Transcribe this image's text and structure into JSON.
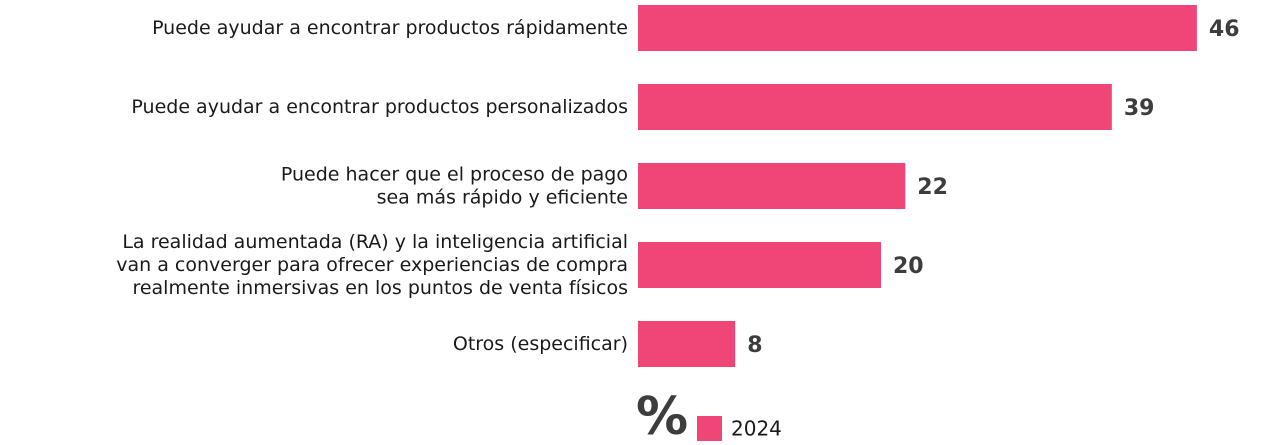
{
  "chart_data": {
    "type": "bar",
    "orientation": "horizontal",
    "categories": [
      [
        "Puede ayudar a encontrar productos rápidamente"
      ],
      [
        "Puede ayudar a encontrar productos personalizados"
      ],
      [
        "Puede hacer que el proceso de pago",
        "sea más rápido y eficiente"
      ],
      [
        "La realidad aumentada (RA) y la inteligencia artificial",
        "van a converger para ofrecer experiencias de compra",
        "realmente inmersivas en los puntos de venta físicos"
      ],
      [
        "Otros (especificar)"
      ]
    ],
    "series": [
      {
        "name": "2024",
        "color": "#ef4677",
        "values": [
          46,
          39,
          22,
          20,
          8
        ]
      }
    ],
    "unit_label": "%"
  }
}
